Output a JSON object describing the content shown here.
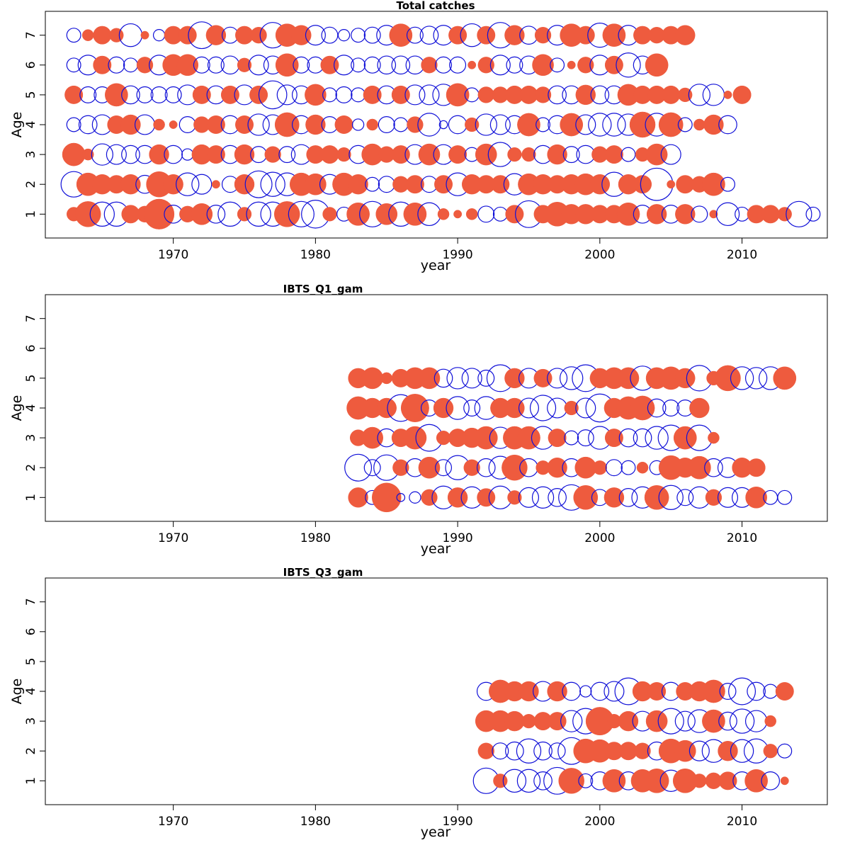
{
  "chart_data": [
    {
      "type": "scatter",
      "subtype": "bubble-residuals",
      "title": "Total catches",
      "xlabel": "year",
      "ylabel": "Age",
      "xlim": [
        1961,
        2016
      ],
      "ylim": [
        0.2,
        7.8
      ],
      "xticks": [
        1970,
        1980,
        1990,
        2000,
        2010
      ],
      "yticks": [
        1,
        2,
        3,
        4,
        5,
        6,
        7
      ],
      "x_start": 1963,
      "legend": "none",
      "grid": false,
      "colors": {
        "positive": "#ee5b3e",
        "negative": "#1010d8"
      },
      "ages": [
        {
          "age": 1,
          "values": [
            0.3,
            1.0,
            -0.9,
            -0.9,
            0.5,
            0.4,
            1.4,
            -0.5,
            0.4,
            0.7,
            -0.5,
            -0.9,
            0.3,
            -0.9,
            -0.9,
            1.0,
            -1.0,
            -1.2,
            0.3,
            -0.3,
            0.8,
            -1.0,
            0.7,
            -0.9,
            0.8,
            -0.8,
            0.2,
            0.1,
            0.2,
            -0.4,
            -0.3,
            0.5,
            -1.1,
            0.5,
            0.9,
            0.6,
            0.6,
            0.5,
            0.5,
            0.8,
            -0.5,
            0.6,
            -0.5,
            0.6,
            -0.4,
            0.1,
            -0.8,
            -0.3,
            0.5,
            0.5,
            0.3,
            -1.0,
            -0.3
          ]
        },
        {
          "age": 2,
          "values": [
            -1.0,
            0.8,
            0.6,
            0.5,
            0.6,
            -0.5,
            1.0,
            0.6,
            -0.8,
            -0.6,
            0.1,
            -0.4,
            0.6,
            -1.1,
            -0.9,
            -0.8,
            0.8,
            0.7,
            -0.6,
            0.8,
            0.6,
            -0.3,
            -0.4,
            0.4,
            0.5,
            -0.4,
            0.5,
            -0.8,
            0.6,
            0.5,
            0.5,
            -0.7,
            0.7,
            0.6,
            0.5,
            0.6,
            0.7,
            0.6,
            -0.9,
            0.6,
            0.5,
            -1.6,
            0.1,
            0.5,
            0.4,
            0.8,
            -0.3
          ]
        },
        {
          "age": 3,
          "values": [
            0.8,
            0.2,
            -0.7,
            -0.6,
            -0.5,
            -0.5,
            0.6,
            -0.5,
            -0.2,
            0.6,
            0.5,
            -0.5,
            0.6,
            -0.4,
            0.4,
            -0.4,
            -0.6,
            0.5,
            0.5,
            0.3,
            -0.5,
            0.7,
            0.4,
            0.5,
            -0.6,
            0.7,
            -0.6,
            0.5,
            -0.3,
            0.7,
            -0.9,
            0.3,
            0.3,
            -0.5,
            0.6,
            -0.4,
            -0.5,
            0.4,
            0.5,
            -0.3,
            0.3,
            0.7,
            -0.6
          ]
        },
        {
          "age": 4,
          "values": [
            -0.3,
            -0.5,
            -0.6,
            0.5,
            0.6,
            -0.6,
            0.2,
            0.1,
            -0.4,
            0.4,
            0.5,
            -0.5,
            0.5,
            -0.7,
            -0.6,
            0.9,
            -0.5,
            0.6,
            -0.4,
            0.5,
            -0.2,
            0.2,
            -0.4,
            -0.3,
            0.4,
            -0.8,
            -0.1,
            -0.5,
            0.3,
            -0.7,
            -0.6,
            -0.5,
            0.8,
            -0.3,
            -0.5,
            0.8,
            -0.6,
            -0.8,
            -0.8,
            -0.7,
            1.0,
            -0.8,
            0.9,
            -0.3,
            0.2,
            0.6,
            -0.5
          ]
        },
        {
          "age": 5,
          "values": [
            0.5,
            -0.4,
            -0.4,
            0.8,
            -0.5,
            -0.4,
            -0.4,
            -0.4,
            -0.6,
            0.5,
            -0.5,
            0.5,
            -0.6,
            0.5,
            -1.2,
            -0.6,
            -0.5,
            0.7,
            -0.3,
            -0.4,
            -0.3,
            0.5,
            -0.5,
            0.5,
            -0.6,
            -0.6,
            -0.7,
            0.8,
            -0.3,
            0.4,
            0.4,
            0.5,
            0.5,
            0.4,
            -0.5,
            -0.5,
            0.6,
            -0.5,
            -0.5,
            0.7,
            0.5,
            0.5,
            0.5,
            0.3,
            -0.7,
            -0.7,
            0.1,
            0.5
          ]
        },
        {
          "age": 6,
          "values": [
            -0.3,
            -0.6,
            0.5,
            -0.4,
            -0.3,
            0.4,
            -0.6,
            0.7,
            0.7,
            -0.4,
            -0.4,
            -0.5,
            0.3,
            -0.6,
            -0.5,
            0.8,
            -0.4,
            -0.4,
            0.5,
            -0.6,
            -0.3,
            -0.4,
            -0.5,
            -0.5,
            -0.5,
            0.4,
            -0.4,
            -0.4,
            0.1,
            0.4,
            -0.6,
            -0.4,
            -0.5,
            0.7,
            -0.3,
            0.1,
            0.4,
            -0.6,
            0.5,
            -0.9,
            -0.5,
            0.8
          ]
        },
        {
          "age": 7,
          "values": [
            -0.3,
            0.2,
            0.5,
            0.3,
            -0.8,
            0.1,
            -0.2,
            0.5,
            0.5,
            -1.1,
            0.6,
            -0.4,
            0.5,
            0.4,
            -1.0,
            0.8,
            0.6,
            -0.6,
            -0.4,
            -0.2,
            -0.3,
            -0.4,
            -0.6,
            0.8,
            -0.4,
            -0.5,
            -0.6,
            0.5,
            -0.8,
            0.5,
            -1.0,
            0.6,
            -0.5,
            0.4,
            -0.6,
            0.8,
            0.5,
            -0.9,
            0.8,
            -0.6,
            0.5,
            0.4,
            0.5,
            0.6
          ]
        }
      ]
    },
    {
      "type": "scatter",
      "subtype": "bubble-residuals",
      "title": "IBTS_Q1_gam",
      "xlabel": "year",
      "ylabel": "Age",
      "xlim": [
        1961,
        2016
      ],
      "ylim": [
        0.2,
        7.8
      ],
      "xticks": [
        1970,
        1980,
        1990,
        2000,
        2010
      ],
      "yticks": [
        1,
        2,
        3,
        4,
        5,
        6,
        7
      ],
      "x_start": 1983,
      "legend": "none",
      "grid": false,
      "colors": {
        "positive": "#ee5b3e",
        "negative": "#1010d8"
      },
      "ages": [
        {
          "age": 1,
          "values": [
            0.6,
            -0.3,
            1.3,
            -0.1,
            -0.2,
            0.4,
            -0.8,
            0.6,
            -0.7,
            0.5,
            -0.8,
            0.3,
            -0.6,
            -0.7,
            -0.5,
            -1.0,
            0.9,
            -0.4,
            0.6,
            -0.5,
            -0.7,
            0.9,
            -0.9,
            -0.4,
            -0.7,
            0.4,
            -0.6,
            -0.6,
            0.7,
            -0.3,
            -0.3
          ]
        },
        {
          "age": 2,
          "values": [
            -1.1,
            -0.4,
            -1.0,
            0.4,
            -0.5,
            0.7,
            -0.4,
            -0.9,
            0.4,
            -0.5,
            -0.8,
            1.0,
            -0.5,
            0.3,
            0.6,
            -0.5,
            0.7,
            0.3,
            -0.4,
            -0.3,
            0.2,
            -0.3,
            0.9,
            0.6,
            0.8,
            -0.5,
            -0.6,
            0.6,
            0.5
          ]
        },
        {
          "age": 3,
          "values": [
            0.4,
            0.7,
            -0.5,
            0.5,
            0.8,
            -1.1,
            0.3,
            0.5,
            0.6,
            0.8,
            -0.7,
            0.8,
            0.8,
            -0.8,
            0.5,
            -0.3,
            -0.4,
            -0.8,
            0.5,
            -0.5,
            -0.5,
            -0.8,
            -1.0,
            0.8,
            -1.0,
            0.2
          ]
        },
        {
          "age": 4,
          "values": [
            0.8,
            0.6,
            0.6,
            -1.1,
            1.2,
            -0.4,
            0.6,
            -0.8,
            -0.4,
            -0.8,
            0.6,
            0.6,
            -0.6,
            -1.0,
            -0.6,
            0.3,
            -0.6,
            -1.2,
            0.6,
            0.8,
            0.9,
            -0.5,
            -0.4,
            -0.4,
            0.6
          ]
        },
        {
          "age": 5,
          "values": [
            0.6,
            0.7,
            0.2,
            0.5,
            0.7,
            0.7,
            -0.5,
            -0.7,
            -0.6,
            -0.4,
            -1.1,
            0.6,
            -0.6,
            0.5,
            -0.6,
            -0.8,
            -1.1,
            0.6,
            0.7,
            0.7,
            -0.9,
            0.7,
            0.8,
            0.6,
            -1.0,
            0.3,
            1.0,
            -0.8,
            -0.7,
            -0.8,
            0.8
          ]
        }
      ]
    },
    {
      "type": "scatter",
      "subtype": "bubble-residuals",
      "title": "IBTS_Q3_gam",
      "xlabel": "year",
      "ylabel": "Age",
      "xlim": [
        1961,
        2016
      ],
      "ylim": [
        0.2,
        7.8
      ],
      "xticks": [
        1970,
        1980,
        1990,
        2000,
        2010
      ],
      "yticks": [
        1,
        2,
        3,
        4,
        5,
        6,
        7
      ],
      "x_start": 1992,
      "legend": "none",
      "grid": false,
      "colors": {
        "positive": "#ee5b3e",
        "negative": "#1010d8"
      },
      "ages": [
        {
          "age": 1,
          "values": [
            -1.0,
            0.3,
            -0.8,
            -0.8,
            -0.5,
            -1.1,
            1.0,
            -0.3,
            -0.5,
            0.8,
            -0.5,
            0.8,
            0.9,
            -0.7,
            0.9,
            0.3,
            0.4,
            0.5,
            -0.5,
            0.8,
            -0.5,
            0.1
          ]
        },
        {
          "age": 2,
          "values": [
            0.4,
            -0.4,
            -0.5,
            -0.9,
            -0.5,
            -0.4,
            -1.1,
            0.9,
            0.8,
            0.5,
            0.5,
            0.4,
            -0.5,
            0.9,
            0.7,
            -0.6,
            -0.8,
            0.6,
            -0.8,
            -0.9,
            0.3,
            -0.3
          ]
        },
        {
          "age": 3,
          "values": [
            0.7,
            0.7,
            0.6,
            0.3,
            0.5,
            0.5,
            -0.7,
            -1.0,
            1.2,
            0.3,
            0.6,
            -0.6,
            0.7,
            -1.0,
            -0.6,
            -0.8,
            0.8,
            -0.5,
            -0.9,
            -0.7,
            0.2
          ]
        },
        {
          "age": 4,
          "values": [
            -0.5,
            0.8,
            0.6,
            0.6,
            -0.6,
            0.6,
            -0.5,
            -0.2,
            -0.5,
            -0.6,
            -1.1,
            0.6,
            0.5,
            -0.5,
            0.5,
            0.6,
            0.8,
            -0.4,
            -1.1,
            -0.5,
            -0.3,
            0.5
          ]
        }
      ]
    }
  ]
}
